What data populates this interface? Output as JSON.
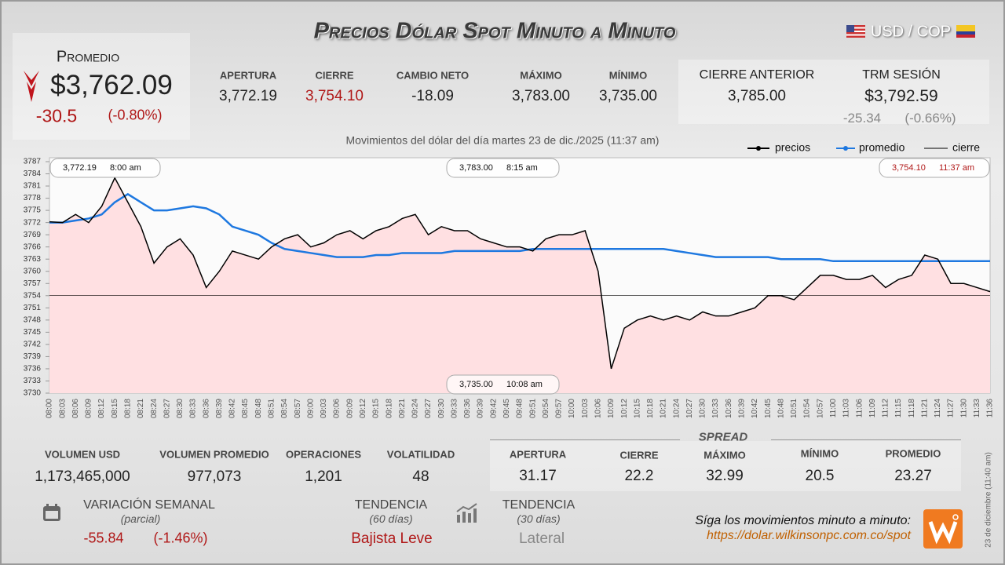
{
  "header": {
    "title": "Precios Dólar Spot Minuto a Minuto",
    "pair": "USD / COP"
  },
  "promedio": {
    "label": "Promedio",
    "value": "$3,762.09",
    "change": "-30.5",
    "change_pct": "(-0.80%)"
  },
  "session": [
    {
      "label": "APERTURA",
      "value": "3,772.19"
    },
    {
      "label": "CIERRE",
      "value": "3,754.10"
    },
    {
      "label": "CAMBIO NETO",
      "value": "-18.09"
    },
    {
      "label": "MÁXIMO",
      "value": "3,783.00"
    },
    {
      "label": "MÍNIMO",
      "value": "3,735.00"
    }
  ],
  "previous": {
    "label": "CIERRE ANTERIOR",
    "value": "3,785.00"
  },
  "trm": {
    "label": "TRM SESIÓN",
    "value": "$3,792.59",
    "change": "-25.34",
    "change_pct": "(-0.66%)"
  },
  "chart_data": {
    "type": "line",
    "title": "Movimientos del dólar del día martes 23 de dic./2025 (11:37 am)",
    "categories": [
      "08:00",
      "08:03",
      "08:06",
      "08:09",
      "08:12",
      "08:15",
      "08:18",
      "08:21",
      "08:24",
      "08:27",
      "08:30",
      "08:33",
      "08:36",
      "08:39",
      "08:42",
      "08:45",
      "08:48",
      "08:51",
      "08:54",
      "08:57",
      "09:00",
      "09:03",
      "09:06",
      "09:09",
      "09:12",
      "09:15",
      "09:18",
      "09:21",
      "09:24",
      "09:27",
      "09:30",
      "09:33",
      "09:36",
      "09:39",
      "09:42",
      "09:45",
      "09:48",
      "09:51",
      "09:54",
      "09:57",
      "10:00",
      "10:03",
      "10:06",
      "10:09",
      "10:12",
      "10:15",
      "10:18",
      "10:21",
      "10:24",
      "10:27",
      "10:30",
      "10:33",
      "10:36",
      "10:39",
      "10:42",
      "10:45",
      "10:48",
      "10:51",
      "10:54",
      "10:57",
      "11:00",
      "11:03",
      "11:06",
      "11:09",
      "11:12",
      "11:15",
      "11:18",
      "11:21",
      "11:24",
      "11:27",
      "11:30",
      "11:33",
      "11:36"
    ],
    "series": [
      {
        "name": "precios",
        "color": "#000000",
        "values": [
          3772.19,
          3772,
          3774,
          3772,
          3776,
          3783,
          3777,
          3771,
          3762,
          3766,
          3768,
          3764,
          3756,
          3760,
          3765,
          3764,
          3763,
          3766,
          3768,
          3769,
          3766,
          3767,
          3769,
          3770,
          3768,
          3770,
          3771,
          3773,
          3774,
          3769,
          3771,
          3770,
          3770,
          3768,
          3767,
          3766,
          3766,
          3765,
          3768,
          3769,
          3769,
          3770,
          3760,
          3736,
          3746,
          3748,
          3749,
          3748,
          3749,
          3748,
          3750,
          3749,
          3749,
          3750,
          3751,
          3754,
          3754,
          3753,
          3756,
          3759,
          3759,
          3758,
          3758,
          3759,
          3756,
          3758,
          3759,
          3764,
          3763,
          3757,
          3757,
          3756,
          3755
        ]
      },
      {
        "name": "promedio",
        "color": "#1e78e0",
        "values": [
          3772,
          3772,
          3772.5,
          3773,
          3774,
          3777,
          3779,
          3777,
          3775,
          3775,
          3775.5,
          3776,
          3775.5,
          3774,
          3771,
          3770,
          3769,
          3767,
          3765.5,
          3765,
          3764.5,
          3764,
          3763.5,
          3763.5,
          3763.5,
          3764,
          3764,
          3764.5,
          3764.5,
          3764.5,
          3764.5,
          3765,
          3765,
          3765,
          3765,
          3765,
          3765,
          3765.5,
          3765.5,
          3765.5,
          3765.5,
          3765.5,
          3765.5,
          3765.5,
          3765.5,
          3765.5,
          3765.5,
          3765.5,
          3765,
          3764.5,
          3764,
          3763.5,
          3763.5,
          3763.5,
          3763.5,
          3763.5,
          3763,
          3763,
          3763,
          3763,
          3762.5,
          3762.5,
          3762.5,
          3762.5,
          3762.5,
          3762.5,
          3762.5,
          3762.5,
          3762.5,
          3762.5,
          3762.5,
          3762.5,
          3762.5
        ]
      }
    ],
    "reference_lines": [
      {
        "name": "cierre",
        "value": 3754.1,
        "color": "#000000"
      }
    ],
    "ylim": [
      3730,
      3787
    ],
    "yticks": [
      3730,
      3733,
      3736,
      3739,
      3742,
      3745,
      3748,
      3751,
      3754,
      3757,
      3760,
      3763,
      3766,
      3769,
      3772,
      3775,
      3778,
      3781,
      3784,
      3787
    ],
    "area_color": "#ffe0e2",
    "annotations": [
      {
        "price": "3,772.19",
        "time": "8:00 am"
      },
      {
        "price": "3,783.00",
        "time": "8:15 am"
      },
      {
        "price": "3,754.10",
        "time": "11:37 am"
      },
      {
        "price": "3,735.00",
        "time": "10:08 am"
      }
    ]
  },
  "stats": [
    {
      "label": "VOLUMEN USD",
      "value": "1,173,465,000"
    },
    {
      "label": "VOLUMEN PROMEDIO",
      "value": "977,073"
    },
    {
      "label": "OPERACIONES",
      "value": "1,201"
    },
    {
      "label": "VOLATILIDAD",
      "value": "48"
    }
  ],
  "spread": {
    "title": "SPREAD",
    "items": [
      {
        "label": "APERTURA",
        "value": "31.17"
      },
      {
        "label": "CIERRE",
        "value": "22.2"
      },
      {
        "label": "MÁXIMO",
        "value": "32.99"
      },
      {
        "label": "MÍNIMO",
        "value": "20.5"
      },
      {
        "label": "PROMEDIO",
        "value": "23.27"
      }
    ]
  },
  "weekly": {
    "label": "VARIACIÓN SEMANAL",
    "note": "(parcial)",
    "change": "-55.84",
    "change_pct": "(-1.46%)"
  },
  "trend_60": {
    "label": "TENDENCIA",
    "note": "(60 días)",
    "value": "Bajista Leve"
  },
  "trend_30": {
    "label": "TENDENCIA",
    "note": "(30 días)",
    "value": "Lateral"
  },
  "footer": {
    "text": "Síga los movimientos minuto a minuto:",
    "url": "https://dolar.wilkinsonpc.com.co/spot",
    "stamp": "23 de diciembre (11:40 am)"
  }
}
